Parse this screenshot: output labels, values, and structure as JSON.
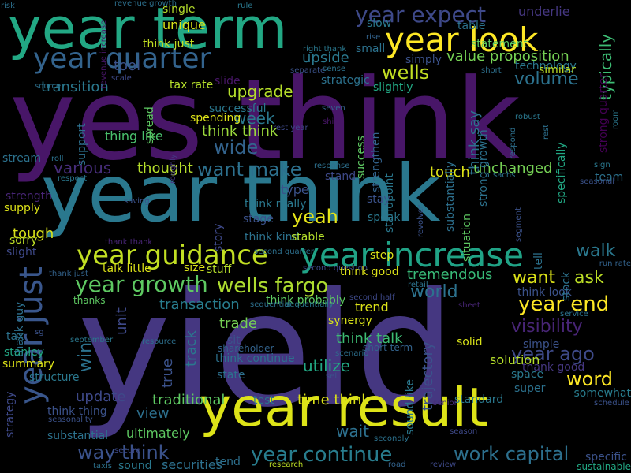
{
  "background": "#000000",
  "words": [
    {
      "text": "yield",
      "color": "#453781"
    },
    {
      "text": "yes think",
      "color": "#481668"
    },
    {
      "text": "year think",
      "color": "#2a788e"
    },
    {
      "text": "year term",
      "color": "#22a884"
    },
    {
      "text": "year result",
      "color": "#dde318"
    },
    {
      "text": "year look",
      "color": "#fde725"
    },
    {
      "text": "year quarter",
      "color": "#33638d"
    },
    {
      "text": "year increase",
      "color": "#20a386"
    },
    {
      "text": "year guidance",
      "color": "#c2df23"
    },
    {
      "text": "year just",
      "color": "#39568c"
    },
    {
      "text": "year expect",
      "color": "#3e4989"
    },
    {
      "text": "year growth",
      "color": "#5ec962"
    },
    {
      "text": "year continue",
      "color": "#287d8e"
    },
    {
      "text": "work capital",
      "color": "#2d708e"
    },
    {
      "text": "way think",
      "color": "#3b528b"
    },
    {
      "text": "wells fargo",
      "color": "#addc30"
    },
    {
      "text": "year end",
      "color": "#fde725"
    },
    {
      "text": "year ago",
      "color": "#3e4a89"
    },
    {
      "text": "want make",
      "color": "#2d708e"
    },
    {
      "text": "wide",
      "color": "#33638d"
    },
    {
      "text": "wells",
      "color": "#c2df23"
    },
    {
      "text": "upgrade",
      "color": "#b5de2b"
    },
    {
      "text": "yeah",
      "color": "#e5e419"
    },
    {
      "text": "volume",
      "color": "#2c728e"
    },
    {
      "text": "walk",
      "color": "#2a788e"
    },
    {
      "text": "world",
      "color": "#2c728e"
    },
    {
      "text": "word",
      "color": "#fde725"
    },
    {
      "text": "visibility",
      "color": "#482576"
    },
    {
      "text": "various",
      "color": "#472d7b"
    },
    {
      "text": "want",
      "color": "#dde318"
    },
    {
      "text": "ask",
      "color": "#bddf26"
    },
    {
      "text": "think think",
      "color": "#9bd93c"
    },
    {
      "text": "think really",
      "color": "#2a788e"
    },
    {
      "text": "think kind",
      "color": "#2c728e"
    },
    {
      "text": "think say",
      "color": "#2c728e"
    },
    {
      "text": "tool",
      "color": "#3b528b"
    },
    {
      "text": "upside",
      "color": "#2a788e"
    },
    {
      "text": "value proposition",
      "color": "#75d054"
    },
    {
      "text": "underlie",
      "color": "#453781"
    },
    {
      "text": "unique",
      "color": "#d8e219"
    },
    {
      "text": "single",
      "color": "#b5de2b"
    },
    {
      "text": "think just",
      "color": "#c2df23"
    },
    {
      "text": "typically",
      "color": "#3dbc74"
    },
    {
      "text": "transition",
      "color": "#2a788e"
    },
    {
      "text": "week",
      "color": "#2a788e"
    },
    {
      "text": "thing like",
      "color": "#4ac16d"
    },
    {
      "text": "thought",
      "color": "#b5de2b"
    },
    {
      "text": "unchanged",
      "color": "#75d054"
    },
    {
      "text": "touch",
      "color": "#dde318"
    },
    {
      "text": "type",
      "color": "#3b528b"
    },
    {
      "text": "tough",
      "color": "#d8e219"
    },
    {
      "text": "supply",
      "color": "#dde318"
    },
    {
      "text": "tremendous",
      "color": "#38b977"
    },
    {
      "text": "unit",
      "color": "#3e4989"
    },
    {
      "text": "win",
      "color": "#2c728e"
    },
    {
      "text": "update",
      "color": "#3e4989"
    },
    {
      "text": "view",
      "color": "#2d708e"
    },
    {
      "text": "trade",
      "color": "#75d054"
    },
    {
      "text": "utilize",
      "color": "#22a884"
    },
    {
      "text": "traditional",
      "color": "#5ec962"
    },
    {
      "text": "time think",
      "color": "#dde318"
    },
    {
      "text": "wait",
      "color": "#2d708e"
    },
    {
      "text": "ultimately",
      "color": "#5ec962"
    },
    {
      "text": "transaction",
      "color": "#287d8e"
    },
    {
      "text": "track",
      "color": "#2a788e"
    },
    {
      "text": "true",
      "color": "#3b528b"
    },
    {
      "text": "think talk",
      "color": "#3dbc74"
    },
    {
      "text": "trend",
      "color": "#dde318"
    },
    {
      "text": "synergy",
      "color": "#d8e219"
    },
    {
      "text": "strategy",
      "color": "#3e4989"
    },
    {
      "text": "trajectory",
      "color": "#3b528b"
    },
    {
      "text": "think thing",
      "color": "#3b528b"
    },
    {
      "text": "solution",
      "color": "#b5de2b"
    },
    {
      "text": "solid",
      "color": "#d8e219"
    },
    {
      "text": "space",
      "color": "#2a788e"
    },
    {
      "text": "super",
      "color": "#2c728e"
    },
    {
      "text": "somewhat",
      "color": "#287d8e"
    },
    {
      "text": "standard",
      "color": "#2a788e"
    },
    {
      "text": "think probably",
      "color": "#5ec962"
    },
    {
      "text": "think good",
      "color": "#dde318"
    },
    {
      "text": "think look",
      "color": "#3b528b"
    },
    {
      "text": "think continue",
      "color": "#2c728e"
    },
    {
      "text": "stanley",
      "color": "#22a884"
    },
    {
      "text": "summary",
      "color": "#dde318"
    },
    {
      "text": "structure",
      "color": "#2a788e"
    },
    {
      "text": "slight",
      "color": "#3e4989"
    },
    {
      "text": "sorry",
      "color": "#bddf26"
    },
    {
      "text": "strength",
      "color": "#482576"
    },
    {
      "text": "stream",
      "color": "#2c728e"
    },
    {
      "text": "stay",
      "color": "#3b528b"
    },
    {
      "text": "speak",
      "color": "#2a788e"
    },
    {
      "text": "stage",
      "color": "#3b528b"
    },
    {
      "text": "stable",
      "color": "#b5de2b"
    },
    {
      "text": "step",
      "color": "#dde318"
    },
    {
      "text": "size",
      "color": "#d8e219"
    },
    {
      "text": "stuff",
      "color": "#b5de2b"
    },
    {
      "text": "talk little",
      "color": "#dde318"
    },
    {
      "text": "thanks",
      "color": "#5ec962"
    },
    {
      "text": "tax",
      "color": "#2c728e"
    },
    {
      "text": "sit",
      "color": "#3b528b"
    },
    {
      "text": "state",
      "color": "#2d708e"
    },
    {
      "text": "stand",
      "color": "#3e4989"
    },
    {
      "text": "team",
      "color": "#2c728e"
    },
    {
      "text": "tell",
      "color": "#2c728e"
    },
    {
      "text": "stock",
      "color": "#2c728e"
    },
    {
      "text": "strong quarter",
      "color": "#440154"
    },
    {
      "text": "strong growth",
      "color": "#2c728e"
    },
    {
      "text": "specifically",
      "color": "#22a884"
    },
    {
      "text": "sound like",
      "color": "#2a788e"
    },
    {
      "text": "situation",
      "color": "#5ec962"
    },
    {
      "text": "substantially",
      "color": "#2d708e"
    },
    {
      "text": "standpoint",
      "color": "#2a788e"
    },
    {
      "text": "strengthen",
      "color": "#33638d"
    },
    {
      "text": "success",
      "color": "#5ec962"
    },
    {
      "text": "slightly",
      "color": "#22a884"
    },
    {
      "text": "strategic",
      "color": "#2c728e"
    },
    {
      "text": "technology",
      "color": "#2a788e"
    },
    {
      "text": "table",
      "color": "#2c728e"
    },
    {
      "text": "statement",
      "color": "#5ec962"
    },
    {
      "text": "similar",
      "color": "#bddf26"
    },
    {
      "text": "simply",
      "color": "#3b528b"
    },
    {
      "text": "small",
      "color": "#2c728e"
    },
    {
      "text": "slow",
      "color": "#2a788e"
    },
    {
      "text": "slide",
      "color": "#481668"
    },
    {
      "text": "successful",
      "color": "#2a788e"
    },
    {
      "text": "spending",
      "color": "#dde318"
    },
    {
      "text": "tax rate",
      "color": "#b5de2b"
    },
    {
      "text": "spread",
      "color": "#5ec962"
    },
    {
      "text": "support",
      "color": "#2d708e"
    },
    {
      "text": "story",
      "color": "#3e4989"
    },
    {
      "text": "simple",
      "color": "#3b528b"
    },
    {
      "text": "specific",
      "color": "#3b528b"
    },
    {
      "text": "sustainable",
      "color": "#22a884"
    },
    {
      "text": "sound",
      "color": "#2a788e"
    },
    {
      "text": "securities",
      "color": "#2d708e"
    },
    {
      "text": "tend",
      "color": "#2d708e"
    },
    {
      "text": "substantial",
      "color": "#2c728e"
    },
    {
      "text": "test",
      "color": "#2c728e"
    },
    {
      "text": "thank good",
      "color": "#453781"
    },
    {
      "text": "thank guy",
      "color": "#2d708e"
    },
    {
      "text": "thank just",
      "color": "#33638d"
    },
    {
      "text": "thank thank",
      "color": "#482576"
    },
    {
      "text": "short term",
      "color": "#33638d"
    },
    {
      "text": "shareholder",
      "color": "#33638d"
    },
    {
      "text": "source",
      "color": "#2d708e"
    },
    {
      "text": "separate",
      "color": "#3b528b"
    },
    {
      "text": "scale",
      "color": "#3e4989"
    },
    {
      "text": "seven",
      "color": "#33638d"
    },
    {
      "text": "shift",
      "color": "#481668"
    },
    {
      "text": "rest year",
      "color": "#3e4989"
    },
    {
      "text": "robust",
      "color": "#2a788e"
    },
    {
      "text": "rest",
      "color": "#2d708e"
    },
    {
      "text": "respond",
      "color": "#2d708e"
    },
    {
      "text": "room",
      "color": "#2a788e"
    },
    {
      "text": "sign",
      "color": "#2a788e"
    },
    {
      "text": "sachs",
      "color": "#2c728e"
    },
    {
      "text": "seasonal",
      "color": "#3b528b"
    },
    {
      "text": "run rate",
      "color": "#33638d"
    },
    {
      "text": "response",
      "color": "#2d708e"
    },
    {
      "text": "rule",
      "color": "#2a788e"
    },
    {
      "text": "risk",
      "color": "#2d708e"
    },
    {
      "text": "revenue growth",
      "color": "#2d708e"
    },
    {
      "text": "revenue increase",
      "color": "#481668"
    },
    {
      "text": "right thank",
      "color": "#2a788e"
    },
    {
      "text": "sense",
      "color": "#2c728e"
    },
    {
      "text": "rise",
      "color": "#33638d"
    },
    {
      "text": "short",
      "color": "#2d708e"
    },
    {
      "text": "roll",
      "color": "#2c728e"
    },
    {
      "text": "respect",
      "color": "#2a788e"
    },
    {
      "text": "roughly",
      "color": "#453781"
    },
    {
      "text": "saving",
      "color": "#3b528b"
    },
    {
      "text": "second quarter",
      "color": "#2d708e"
    },
    {
      "text": "second question",
      "color": "#3e4989"
    },
    {
      "text": "retail",
      "color": "#2c728e"
    },
    {
      "text": "revolver",
      "color": "#3b528b"
    },
    {
      "text": "segment",
      "color": "#3b528b"
    },
    {
      "text": "second half",
      "color": "#3e4989"
    },
    {
      "text": "sequential",
      "color": "#2d708e"
    },
    {
      "text": "sequentially",
      "color": "#2a788e"
    },
    {
      "text": "sheet",
      "color": "#482576"
    },
    {
      "text": "service",
      "color": "#2c728e"
    },
    {
      "text": "sg",
      "color": "#3b528b"
    },
    {
      "text": "september",
      "color": "#2a788e"
    },
    {
      "text": "resource",
      "color": "#2d708e"
    },
    {
      "text": "scenario",
      "color": "#2d708e"
    },
    {
      "text": "sell",
      "color": "#3b528b"
    },
    {
      "text": "senior",
      "color": "#472d7b"
    },
    {
      "text": "schedule",
      "color": "#3b528b"
    },
    {
      "text": "seasonality",
      "color": "#3b528b"
    },
    {
      "text": "secondly",
      "color": "#2c728e"
    },
    {
      "text": "season",
      "color": "#3e4989"
    },
    {
      "text": "secure",
      "color": "#3e4989"
    },
    {
      "text": "taxis",
      "color": "#2c728e"
    },
    {
      "text": "research",
      "color": "#bddf26"
    },
    {
      "text": "road",
      "color": "#33638d"
    },
    {
      "text": "review",
      "color": "#3e4989"
    },
    {
      "text": "session thank",
      "color": "#481668"
    },
    {
      "text": "significantly",
      "color": "#2a788e"
    },
    {
      "text": "session operator",
      "color": "#3b528b"
    }
  ]
}
